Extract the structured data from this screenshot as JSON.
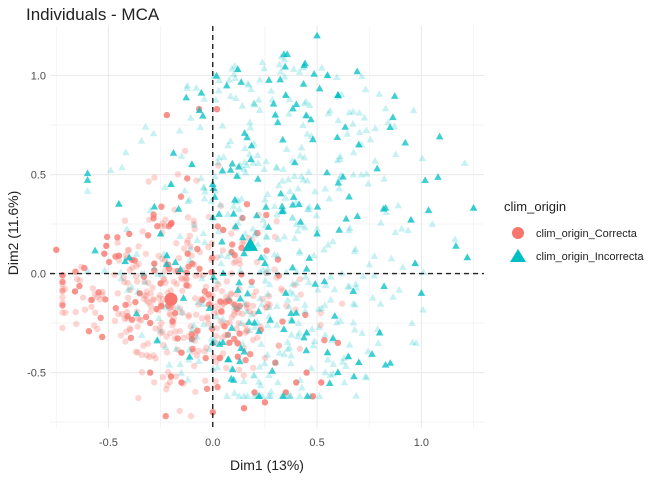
{
  "chart_data": {
    "type": "scatter",
    "title": "Individuals - MCA",
    "xlabel": "Dim1 (13%)",
    "ylabel": "Dim2 (11.6%)",
    "xlim": [
      -0.78,
      1.3
    ],
    "ylim": [
      -0.78,
      1.25
    ],
    "xticks": [
      -0.5,
      0.0,
      0.5,
      1.0
    ],
    "xtick_labels": [
      "-0.5",
      "0.0",
      "0.5",
      "1.0"
    ],
    "yticks": [
      -0.5,
      0.0,
      0.5,
      1.0
    ],
    "ytick_labels": [
      "-0.5",
      "0.0",
      "0.5",
      "1.0"
    ],
    "grid": true,
    "reference_lines": {
      "x": 0,
      "y": 0,
      "style": "dashed"
    },
    "legend": {
      "title": "clim_origin",
      "position": "right",
      "entries": [
        "clim_origin_Correcta",
        "clim_origin_Incorrecta"
      ]
    },
    "series": [
      {
        "name": "clim_origin_Correcta",
        "color": "#F8766D",
        "marker": "circle",
        "centroid": [
          -0.2,
          -0.13
        ],
        "cloud": {
          "x_center": -0.15,
          "x_spread": 0.28,
          "x_min": -0.72,
          "x_max": 0.62,
          "y_min": -0.72,
          "y_max": 1.0,
          "count": 420
        },
        "points": [
          [
            -0.75,
            0.12
          ],
          [
            -0.66,
            -0.09
          ],
          [
            -0.53,
            -0.32
          ],
          [
            -0.52,
            0.1
          ],
          [
            -0.51,
            0.14
          ],
          [
            -0.45,
            0.09
          ],
          [
            -0.4,
            0.2
          ],
          [
            -0.35,
            -0.1
          ],
          [
            -0.3,
            -0.25
          ],
          [
            -0.28,
            0.05
          ],
          [
            -0.25,
            -0.05
          ],
          [
            -0.22,
            0.8
          ],
          [
            -0.2,
            0.25
          ],
          [
            -0.18,
            -0.2
          ],
          [
            -0.15,
            -0.4
          ],
          [
            -0.12,
            0.1
          ],
          [
            -0.1,
            -0.33
          ],
          [
            -0.2,
            -0.52
          ],
          [
            -0.15,
            -0.55
          ],
          [
            -0.3,
            -0.5
          ],
          [
            0.05,
            0.22
          ],
          [
            0.08,
            -0.35
          ],
          [
            0.12,
            -0.42
          ],
          [
            0.2,
            -0.6
          ],
          [
            0.15,
            -0.68
          ],
          [
            0.25,
            -0.65
          ],
          [
            0.3,
            -0.45
          ],
          [
            0.35,
            -0.6
          ],
          [
            0.4,
            -0.55
          ],
          [
            0.45,
            -0.5
          ],
          [
            0.48,
            -0.62
          ],
          [
            0.52,
            -0.55
          ],
          [
            0.6,
            -0.35
          ],
          [
            0.02,
            0.83
          ],
          [
            0.0,
            -0.7
          ]
        ]
      },
      {
        "name": "clim_origin_Incorrecta",
        "color": "#00BFC4",
        "marker": "triangle",
        "centroid": [
          0.18,
          0.14
        ],
        "cloud": {
          "x_center": 0.3,
          "x_spread": 0.33,
          "x_min": -0.6,
          "x_max": 1.28,
          "y_min": -0.62,
          "y_max": 1.22,
          "count": 560
        },
        "points": [
          [
            0.5,
            1.2
          ],
          [
            0.12,
            1.03
          ],
          [
            0.7,
            0.65
          ],
          [
            1.25,
            0.33
          ],
          [
            1.22,
            0.08
          ],
          [
            0.97,
            0.05
          ],
          [
            0.95,
            0.27
          ],
          [
            1.0,
            -0.1
          ],
          [
            -0.45,
            0.35
          ],
          [
            -0.42,
            0.06
          ],
          [
            -0.4,
            0.08
          ],
          [
            -0.25,
            0.2
          ],
          [
            -0.22,
            0.09
          ],
          [
            -0.2,
            0.45
          ],
          [
            -0.1,
            0.55
          ],
          [
            0.0,
            0.45
          ],
          [
            0.1,
            0.3
          ],
          [
            0.25,
            0.05
          ],
          [
            0.35,
            -0.1
          ],
          [
            0.4,
            -0.2
          ],
          [
            0.45,
            -0.3
          ],
          [
            0.55,
            -0.4
          ],
          [
            0.6,
            -0.5
          ],
          [
            0.65,
            -0.42
          ],
          [
            0.7,
            -0.45
          ],
          [
            0.8,
            -0.3
          ],
          [
            0.2,
            -0.25
          ],
          [
            0.0,
            -0.35
          ],
          [
            0.3,
            0.8
          ],
          [
            0.35,
            0.9
          ],
          [
            0.55,
            1.0
          ],
          [
            0.6,
            0.9
          ],
          [
            0.05,
            0.0
          ],
          [
            0.15,
            0.1
          ],
          [
            0.5,
            0.2
          ]
        ]
      }
    ]
  }
}
